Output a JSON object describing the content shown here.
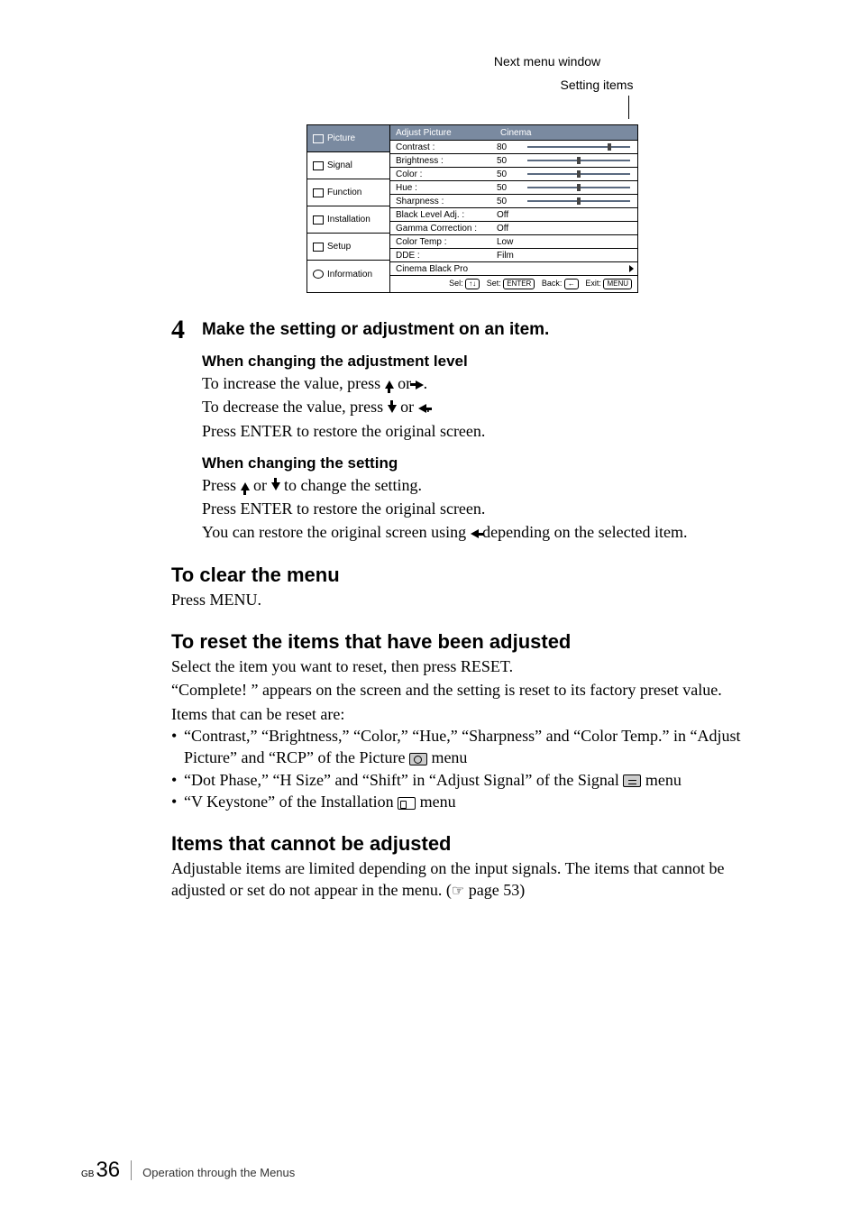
{
  "captions": {
    "top": "Next menu window",
    "sub": "Setting items"
  },
  "menu": {
    "sidebar": [
      {
        "label": "Picture",
        "active": true
      },
      {
        "label": "Signal",
        "active": false
      },
      {
        "label": "Function",
        "active": false
      },
      {
        "label": "Installation",
        "active": false
      },
      {
        "label": "Setup",
        "active": false
      },
      {
        "label": "Information",
        "active": false
      }
    ],
    "header": {
      "left": "Adjust Picture",
      "right": "Cinema"
    },
    "rows": [
      {
        "label": "Contrast :",
        "value": "80",
        "slider": "p80"
      },
      {
        "label": "Brightness :",
        "value": "50",
        "slider": "p50"
      },
      {
        "label": "Color :",
        "value": "50",
        "slider": "p50"
      },
      {
        "label": "Hue :",
        "value": "50",
        "slider": "p50"
      },
      {
        "label": "Sharpness :",
        "value": "50",
        "slider": "p50"
      },
      {
        "label": "Black Level Adj. :",
        "value": "Off",
        "slider": null
      },
      {
        "label": "Gamma Correction :",
        "value": "Off",
        "slider": null
      },
      {
        "label": "Color Temp :",
        "value": "Low",
        "slider": null
      },
      {
        "label": "DDE :",
        "value": "Film",
        "slider": null
      },
      {
        "label": "Cinema Black Pro",
        "value": "",
        "slider": null,
        "arrow": true
      }
    ],
    "footer": {
      "sel": "Sel:",
      "set": "Set:",
      "setkey": "ENTER",
      "back": "Back:",
      "exit": "Exit:",
      "exitkey": "MENU"
    }
  },
  "step": {
    "num": "4",
    "title": "Make the setting or adjustment on an item.",
    "sub1": "When changing the adjustment level",
    "p1a": "To increase the value, press ",
    "p1b": " or ",
    "p1c": ".",
    "p2a": "To decrease the value, press ",
    "p2b": " or ",
    "p2c": ".",
    "p3": "Press ENTER to restore the original screen.",
    "sub2": "When changing the setting",
    "p4a": "Press ",
    "p4b": " or ",
    "p4c": " to change the setting.",
    "p5": "Press ENTER to restore the original screen.",
    "p6a": "You can restore the original screen using ",
    "p6b": " depending on the selected item."
  },
  "clear": {
    "h": "To clear the menu",
    "p": "Press MENU."
  },
  "reset": {
    "h": "To reset the items that have been adjusted",
    "p1": "Select the item you want to reset, then press RESET.",
    "p2": "“Complete! ” appears on the screen and the setting is reset to its factory preset value.",
    "p3": "Items that can be reset are:",
    "b1a": "“Contrast,” “Brightness,” “Color,” “Hue,” “Sharpness” and “Color Temp.” in “Adjust Picture” and “RCP” of the Picture ",
    "b1b": "  menu",
    "b2a": "“Dot Phase,” “H Size” and “Shift” in “Adjust Signal” of the Signal ",
    "b2b": " menu",
    "b3a": "“V Keystone” of the Installation ",
    "b3b": "  menu"
  },
  "cannot": {
    "h": "Items that cannot be adjusted",
    "p1": "Adjustable items are limited depending on the input signals. The items that cannot be adjusted or set do not appear in the menu. (",
    "p2": " page 53)"
  },
  "footer": {
    "gb": "GB",
    "page": "36",
    "text": "Operation through the Menus"
  }
}
